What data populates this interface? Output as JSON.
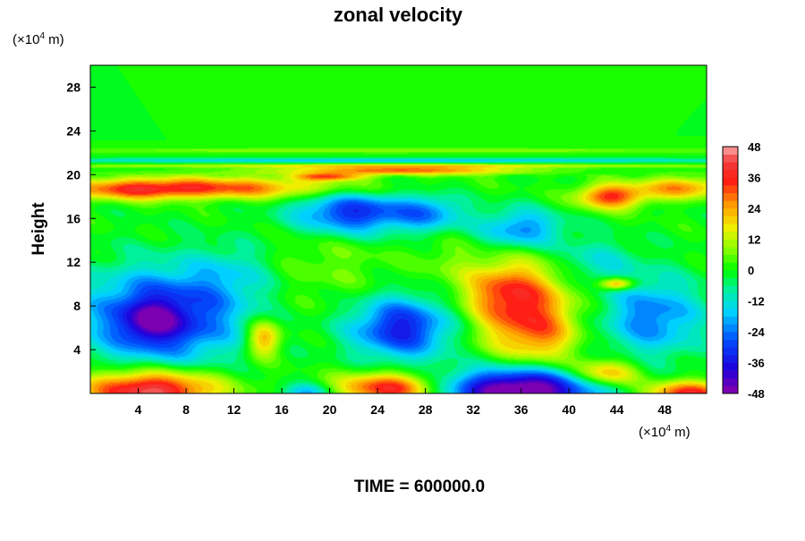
{
  "chart_data": {
    "type": "heatmap",
    "title": "zonal velocity",
    "ylabel": "Height",
    "x_unit": {
      "prefix": "(×10",
      "exp": "4",
      "suffix": " m)"
    },
    "y_unit": {
      "prefix": "(×10",
      "exp": "4",
      "suffix": " m)"
    },
    "xlim": [
      0,
      51.5
    ],
    "ylim": [
      0,
      30
    ],
    "x_ticks": [
      4,
      8,
      12,
      16,
      20,
      24,
      28,
      32,
      36,
      40,
      44,
      48
    ],
    "y_ticks": [
      4,
      8,
      12,
      16,
      20,
      24,
      28
    ],
    "colorbar": {
      "range": [
        -48,
        48
      ],
      "ticks": [
        48,
        36,
        24,
        12,
        0,
        -12,
        -24,
        -36,
        -48
      ],
      "levels": 32
    },
    "footer": "TIME = 600000.0",
    "field": {
      "background": 0,
      "features": [
        {
          "x": 6,
          "y": 7,
          "sx": 4.5,
          "sy": 3,
          "v": -38
        },
        {
          "x": 5,
          "y": 6.5,
          "sx": 1.5,
          "sy": 1.2,
          "v": -15
        },
        {
          "x": 26,
          "y": 6,
          "sx": 3,
          "sy": 2,
          "v": -35
        },
        {
          "x": 22,
          "y": 16.5,
          "sx": 3.5,
          "sy": 1.4,
          "v": -34
        },
        {
          "x": 36,
          "y": 0.3,
          "sx": 4.5,
          "sy": 1.4,
          "v": -55
        },
        {
          "x": 18,
          "y": 0,
          "sx": 1.5,
          "sy": 0.6,
          "v": -20
        },
        {
          "x": 36,
          "y": 15,
          "sx": 2.5,
          "sy": 1.3,
          "v": -24
        },
        {
          "x": 28.5,
          "y": 16.5,
          "sx": 2,
          "sy": 1.2,
          "v": -18
        },
        {
          "x": 47,
          "y": 7,
          "sx": 3,
          "sy": 2.5,
          "v": -24
        },
        {
          "x": 42,
          "y": 12,
          "sx": 2.5,
          "sy": 1.5,
          "v": -12
        },
        {
          "x": 36,
          "y": 8,
          "sx": 3,
          "sy": 3,
          "v": 32
        },
        {
          "x": 38,
          "y": 5,
          "sx": 2,
          "sy": 1.8,
          "v": 12
        },
        {
          "x": 34,
          "y": 9.5,
          "sx": 2,
          "sy": 1.5,
          "v": 10
        },
        {
          "x": 14.5,
          "y": 5,
          "sx": 1,
          "sy": 1.2,
          "v": 26
        },
        {
          "x": 5,
          "y": 0.3,
          "sx": 4,
          "sy": 1.3,
          "v": 46
        },
        {
          "x": 25,
          "y": 0.5,
          "sx": 3,
          "sy": 1,
          "v": 38
        },
        {
          "x": 43,
          "y": 1.8,
          "sx": 2,
          "sy": 0.9,
          "v": 28
        },
        {
          "x": 50,
          "y": 0,
          "sx": 2.5,
          "sy": 0.8,
          "v": 36
        },
        {
          "x": 9,
          "y": 18.8,
          "sx": 9,
          "sy": 0.7,
          "v": 32
        },
        {
          "x": 4,
          "y": 18.5,
          "sx": 3,
          "sy": 0.6,
          "v": 12
        },
        {
          "x": 43.5,
          "y": 18,
          "sx": 2,
          "sy": 0.8,
          "v": 34
        },
        {
          "x": 49.5,
          "y": 18.8,
          "sx": 2.5,
          "sy": 0.7,
          "v": 26
        },
        {
          "x": 44,
          "y": 10,
          "sx": 1,
          "sy": 0.4,
          "v": 30
        },
        {
          "x": 26,
          "y": 20.4,
          "sx": 7,
          "sy": 0.3,
          "v": 30
        },
        {
          "x": 20,
          "y": 19.8,
          "sx": 2,
          "sy": 0.25,
          "v": 26
        },
        {
          "x": 25,
          "y": 21.3,
          "sx": 26,
          "sy": 0.15,
          "v": -16
        },
        {
          "x": 25,
          "y": 22.2,
          "sx": 26,
          "sy": 0.18,
          "v": 8
        },
        {
          "x": 25,
          "y": 20.8,
          "sx": 26,
          "sy": 0.12,
          "v": 12
        },
        {
          "x": 20,
          "y": 12,
          "sx": 4,
          "sy": 3,
          "v": 6
        },
        {
          "x": 12,
          "y": 11,
          "sx": 2.5,
          "sy": 2,
          "v": -10
        },
        {
          "x": 30,
          "y": 12,
          "sx": 2,
          "sy": 2,
          "v": 5
        }
      ]
    }
  }
}
